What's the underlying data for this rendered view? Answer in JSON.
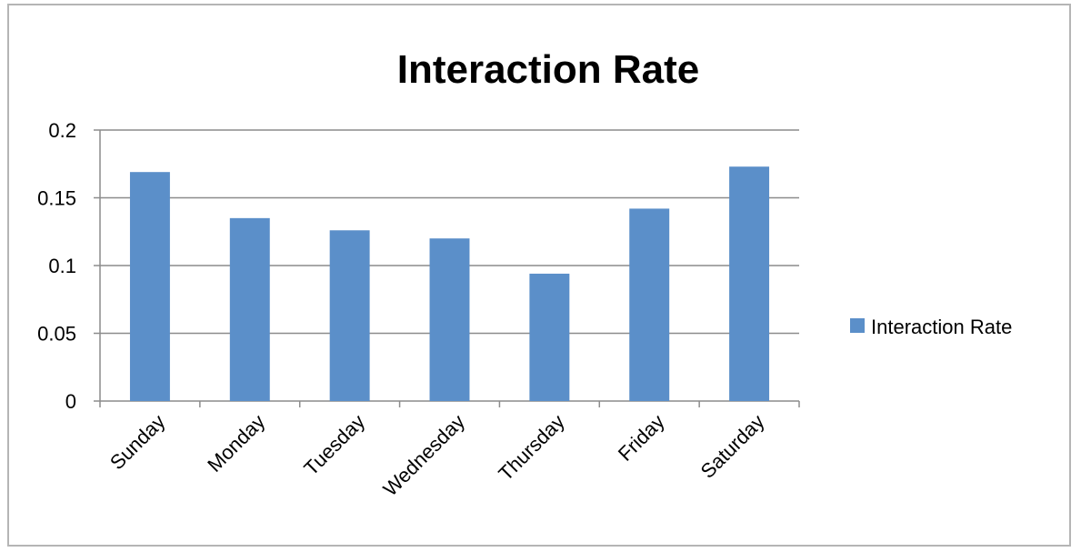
{
  "chart_data": {
    "type": "bar",
    "title": "Interaction Rate",
    "xlabel": "",
    "ylabel": "",
    "categories": [
      "Sunday",
      "Monday",
      "Tuesday",
      "Wednesday",
      "Thursday",
      "Friday",
      "Saturday"
    ],
    "series": [
      {
        "name": "Interaction Rate",
        "values": [
          0.169,
          0.135,
          0.126,
          0.12,
          0.094,
          0.142,
          0.173
        ],
        "color": "#5b8fc9"
      }
    ],
    "ylim": [
      0,
      0.2
    ],
    "yticks": [
      "0",
      "0.05",
      "0.1",
      "0.15",
      "0.2"
    ],
    "grid": true,
    "legend_position": "right"
  }
}
